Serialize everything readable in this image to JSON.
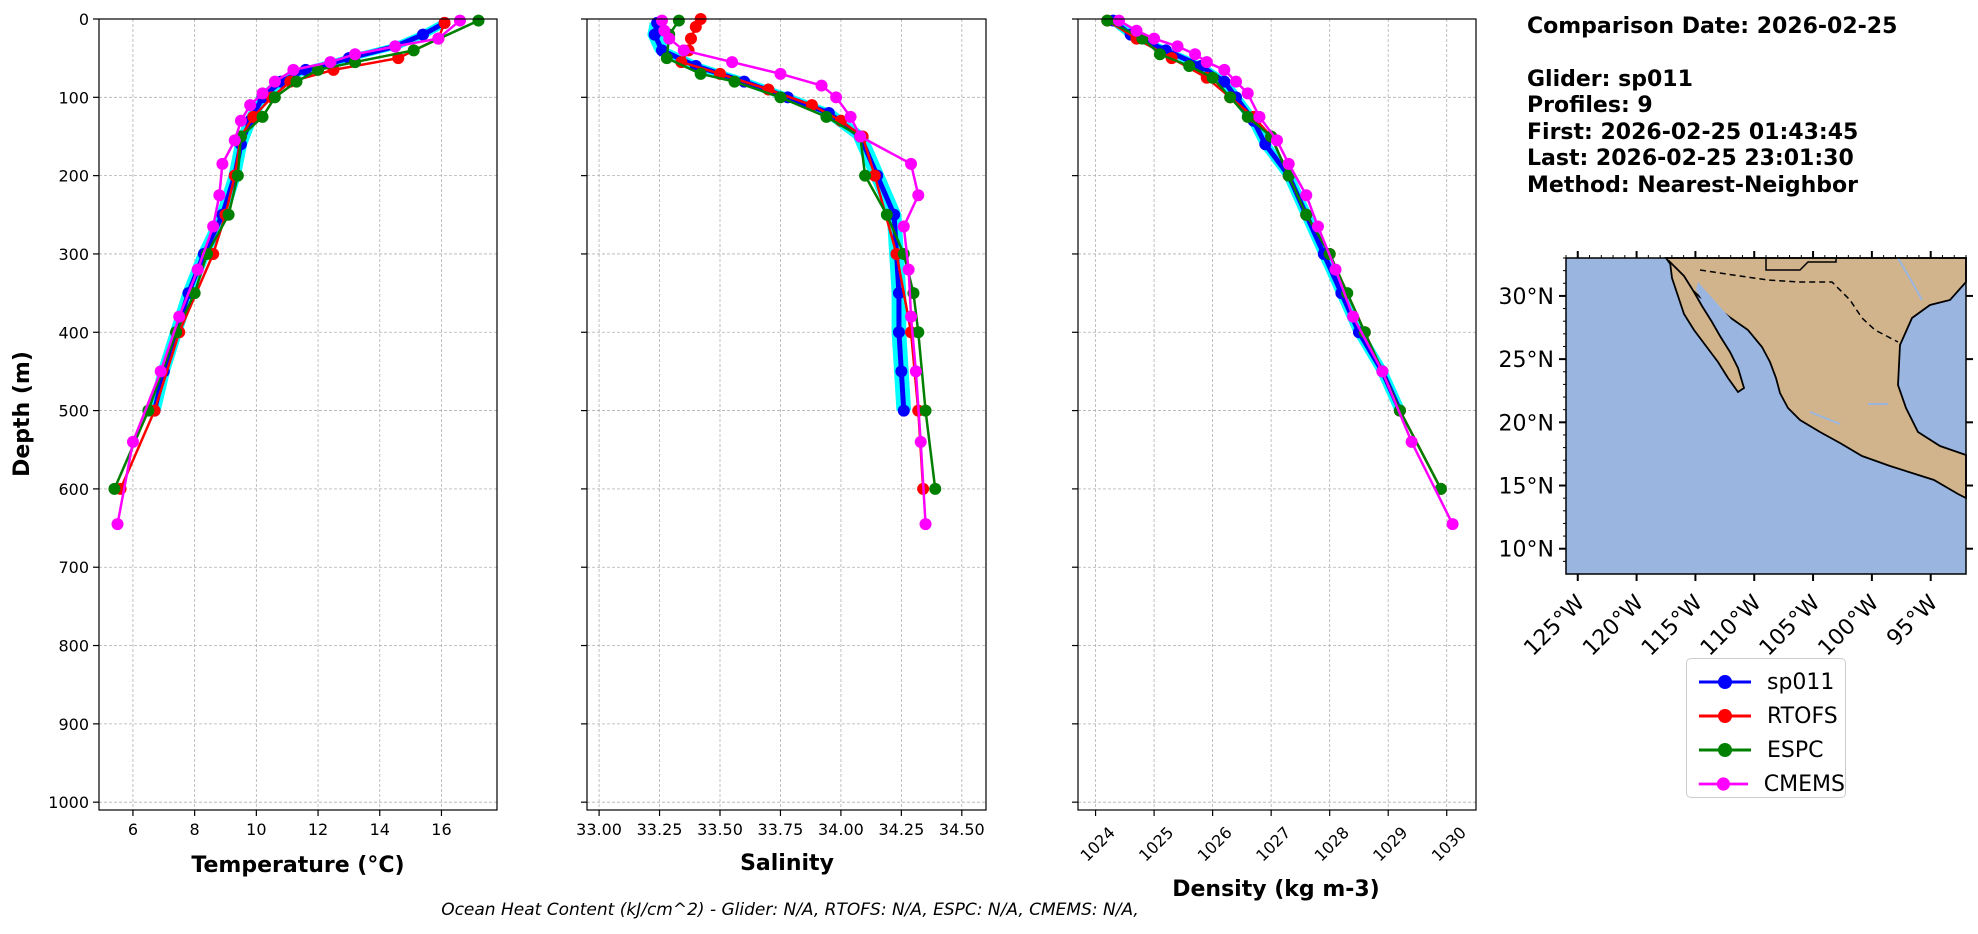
{
  "info": {
    "comparison_date": "Comparison Date: 2026-02-25",
    "glider": "Glider: sp011",
    "profiles": "Profiles: 9",
    "first": "First: 2026-02-25 01:43:45",
    "last": "Last: 2026-02-25 23:01:30",
    "method": "Method: Nearest-Neighbor"
  },
  "footer": "Ocean Heat Content (kJ/cm^2) - Glider: N/A,  RTOFS: N/A,  ESPC: N/A,  CMEMS: N/A,",
  "colors": {
    "sp011": "#0000ff",
    "sp011_spread": "#00ffff",
    "rtofs": "#ff0000",
    "espc": "#008000",
    "cmems": "#ff00ff",
    "land": "#d2b48c",
    "ocean": "#9ab6e0",
    "grid": "#b0b0b0"
  },
  "legend": {
    "items": [
      {
        "label": "sp011",
        "color": "#0000ff"
      },
      {
        "label": "RTOFS",
        "color": "#ff0000"
      },
      {
        "label": "ESPC",
        "color": "#008000"
      },
      {
        "label": "CMEMS",
        "color": "#ff00ff"
      }
    ]
  },
  "chart_data": [
    {
      "type": "line",
      "xlabel": "Temperature ($^{o}C$)",
      "xlabel_display": "Temperature (°C)",
      "ylabel": "Depth (m)",
      "xlim": [
        4.9,
        17.8
      ],
      "ylim": [
        1010,
        0
      ],
      "xticks": [
        6,
        8,
        10,
        12,
        14,
        16
      ],
      "yticks": [
        0,
        100,
        200,
        300,
        400,
        500,
        600,
        700,
        800,
        900,
        1000
      ],
      "grid": true,
      "series": [
        {
          "name": "sp011",
          "color": "#0000ff",
          "depth": [
            5,
            20,
            35,
            50,
            65,
            80,
            100,
            130,
            160,
            200,
            250,
            300,
            350,
            400,
            450,
            500
          ],
          "values": [
            16.1,
            15.4,
            14.5,
            13.0,
            11.6,
            10.8,
            10.2,
            9.8,
            9.5,
            9.3,
            8.9,
            8.3,
            7.8,
            7.4,
            7.0,
            6.7
          ]
        },
        {
          "name": "RTOFS",
          "color": "#ff0000",
          "depth": [
            5,
            25,
            50,
            65,
            80,
            100,
            125,
            150,
            200,
            250,
            300,
            400,
            500,
            600
          ],
          "values": [
            16.1,
            15.9,
            14.6,
            12.5,
            11.1,
            10.5,
            9.9,
            9.5,
            9.3,
            9.0,
            8.6,
            7.5,
            6.7,
            5.6
          ]
        },
        {
          "name": "ESPC",
          "color": "#008000",
          "depth": [
            2,
            40,
            55,
            65,
            80,
            100,
            125,
            150,
            200,
            250,
            300,
            350,
            400,
            500,
            600
          ],
          "values": [
            17.2,
            15.1,
            13.2,
            12.0,
            11.3,
            10.6,
            10.2,
            9.5,
            9.4,
            9.1,
            8.4,
            8.0,
            7.4,
            6.5,
            5.4
          ]
        },
        {
          "name": "CMEMS",
          "color": "#ff00ff",
          "depth": [
            2,
            25,
            35,
            45,
            55,
            65,
            80,
            95,
            110,
            130,
            155,
            185,
            225,
            265,
            320,
            380,
            450,
            540,
            645
          ],
          "values": [
            16.6,
            15.9,
            14.5,
            13.2,
            12.4,
            11.2,
            10.6,
            10.2,
            9.8,
            9.5,
            9.3,
            8.9,
            8.8,
            8.6,
            8.1,
            7.5,
            6.9,
            6.0,
            5.5
          ]
        }
      ]
    },
    {
      "type": "line",
      "xlabel": "Salinity",
      "ylabel": "",
      "xlim": [
        32.95,
        34.6
      ],
      "ylim": [
        1010,
        0
      ],
      "xticks": [
        "33.00",
        "33.25",
        "33.50",
        "33.75",
        "34.00",
        "34.25",
        "34.50"
      ],
      "grid": true,
      "series": [
        {
          "name": "sp011",
          "color": "#0000ff",
          "depth": [
            5,
            20,
            40,
            60,
            80,
            100,
            120,
            150,
            200,
            250,
            300,
            350,
            400,
            450,
            500
          ],
          "values": [
            33.24,
            33.23,
            33.26,
            33.4,
            33.6,
            33.78,
            33.95,
            34.08,
            34.15,
            34.22,
            34.23,
            34.24,
            34.24,
            34.25,
            34.26
          ]
        },
        {
          "name": "RTOFS",
          "color": "#ff0000",
          "depth": [
            0,
            10,
            25,
            40,
            55,
            70,
            90,
            110,
            130,
            150,
            200,
            300,
            400,
            500,
            600
          ],
          "values": [
            33.42,
            33.4,
            33.38,
            33.37,
            33.34,
            33.5,
            33.7,
            33.88,
            34.0,
            34.09,
            34.14,
            34.23,
            34.29,
            34.32,
            34.34
          ]
        },
        {
          "name": "ESPC",
          "color": "#008000",
          "depth": [
            2,
            20,
            50,
            70,
            80,
            100,
            125,
            150,
            200,
            250,
            300,
            350,
            400,
            500,
            600
          ],
          "values": [
            33.33,
            33.29,
            33.28,
            33.42,
            33.56,
            33.75,
            33.94,
            34.08,
            34.1,
            34.19,
            34.26,
            34.3,
            34.32,
            34.35,
            34.39
          ]
        },
        {
          "name": "CMEMS",
          "color": "#ff00ff",
          "depth": [
            2,
            15,
            25,
            40,
            55,
            70,
            85,
            100,
            125,
            150,
            185,
            225,
            265,
            320,
            380,
            450,
            540,
            645
          ],
          "values": [
            33.26,
            33.27,
            33.29,
            33.35,
            33.55,
            33.75,
            33.92,
            33.98,
            34.04,
            34.08,
            34.29,
            34.32,
            34.26,
            34.28,
            34.29,
            34.31,
            34.33,
            34.35
          ]
        }
      ]
    },
    {
      "type": "line",
      "xlabel": "Density (kg m-3)",
      "ylabel": "",
      "xlim": [
        1023.7,
        1030.5
      ],
      "ylim": [
        1010,
        0
      ],
      "xticks": [
        1024,
        1025,
        1026,
        1027,
        1028,
        1029,
        1030
      ],
      "grid": true,
      "series": [
        {
          "name": "sp011",
          "color": "#0000ff",
          "depth": [
            2,
            20,
            40,
            60,
            80,
            100,
            130,
            160,
            200,
            250,
            300,
            350,
            400,
            450,
            500
          ],
          "values": [
            1024.3,
            1024.6,
            1025.2,
            1025.8,
            1026.2,
            1026.4,
            1026.7,
            1026.9,
            1027.3,
            1027.6,
            1027.9,
            1028.2,
            1028.5,
            1028.9,
            1029.2
          ]
        },
        {
          "name": "RTOFS",
          "color": "#ff0000",
          "depth": [
            2,
            25,
            50,
            75,
            100,
            125,
            150,
            200,
            250,
            300,
            400,
            500,
            600
          ],
          "values": [
            1024.2,
            1024.7,
            1025.3,
            1025.9,
            1026.3,
            1026.7,
            1027.0,
            1027.3,
            1027.6,
            1028.0,
            1028.6,
            1029.2,
            1029.9
          ]
        },
        {
          "name": "ESPC",
          "color": "#008000",
          "depth": [
            2,
            25,
            45,
            60,
            75,
            100,
            125,
            150,
            200,
            250,
            300,
            350,
            400,
            500,
            600
          ],
          "values": [
            1024.2,
            1024.8,
            1025.1,
            1025.6,
            1026.0,
            1026.3,
            1026.6,
            1027.0,
            1027.3,
            1027.6,
            1028.0,
            1028.3,
            1028.6,
            1029.2,
            1029.9
          ]
        },
        {
          "name": "CMEMS",
          "color": "#ff00ff",
          "depth": [
            2,
            15,
            25,
            35,
            45,
            55,
            65,
            80,
            95,
            125,
            155,
            185,
            225,
            265,
            320,
            380,
            450,
            540,
            645
          ],
          "values": [
            1024.4,
            1024.7,
            1025.0,
            1025.4,
            1025.7,
            1025.9,
            1026.2,
            1026.4,
            1026.6,
            1026.8,
            1027.1,
            1027.3,
            1027.6,
            1027.8,
            1028.1,
            1028.4,
            1028.9,
            1029.4,
            1030.1
          ]
        }
      ]
    },
    {
      "type": "map",
      "lat_ticks": [
        "30°N",
        "25°N",
        "20°N",
        "15°N",
        "10°N"
      ],
      "lon_ticks": [
        "125°W",
        "120°W",
        "115°W",
        "110°W",
        "105°W",
        "100°W",
        "95°W"
      ],
      "lat_values": [
        30,
        25,
        20,
        15,
        10
      ],
      "lon_values": [
        -125,
        -120,
        -115,
        -110,
        -105,
        -100,
        -95
      ],
      "extent": {
        "lon": [
          -126,
          -92
        ],
        "lat": [
          8,
          33
        ]
      }
    }
  ]
}
